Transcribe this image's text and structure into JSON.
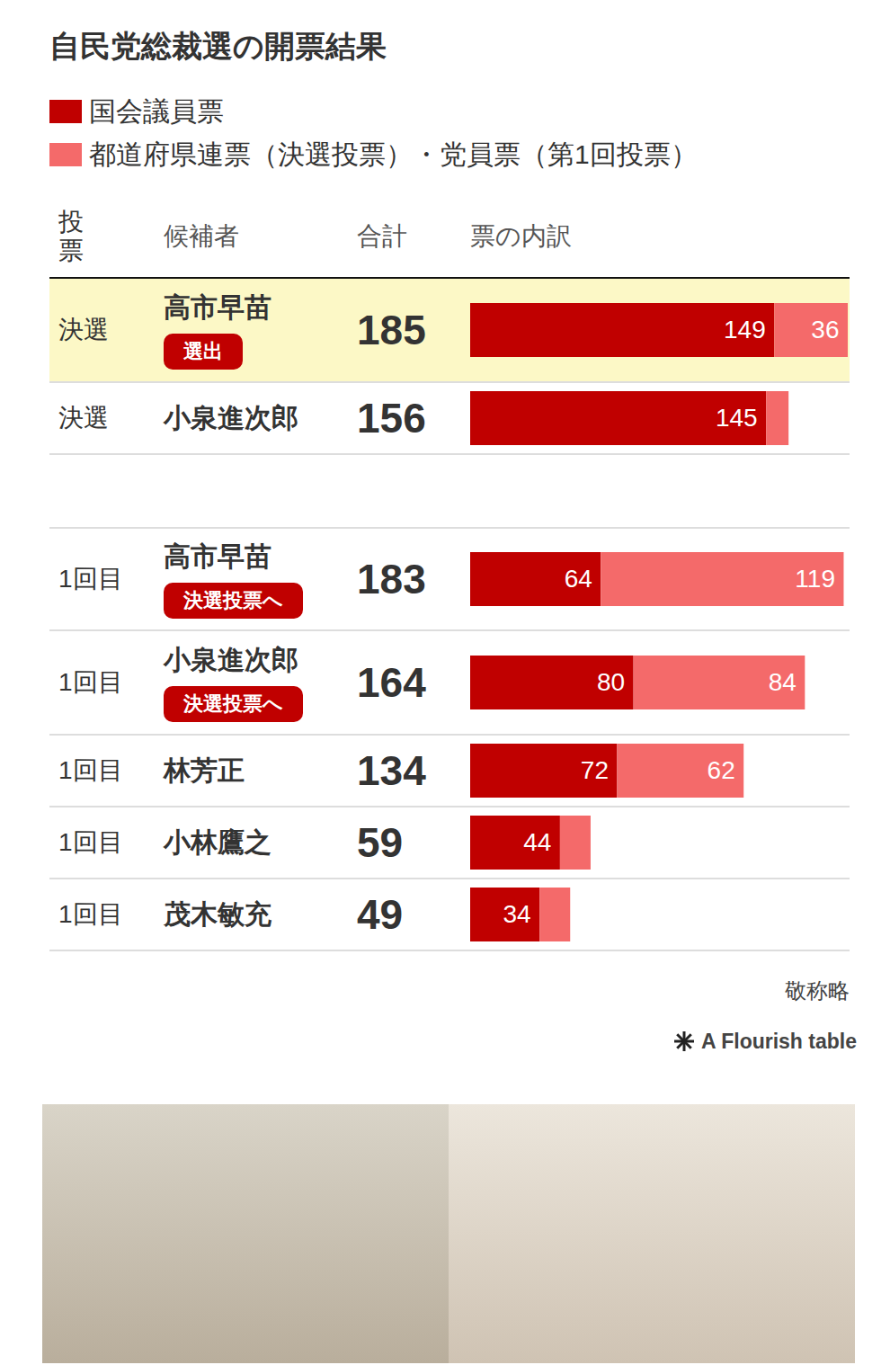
{
  "chart_data": {
    "type": "bar",
    "title": "自民党総裁選の開票結果",
    "orientation": "horizontal",
    "stacked": true,
    "data_labels": true,
    "tick_labels": false,
    "legend": "top-left",
    "column_headers": [
      "投票",
      "候補者",
      "合計",
      "票の内訳"
    ],
    "categories": [
      "高市早苗",
      "小泉進次郎",
      "高市早苗",
      "小泉進次郎",
      "林芳正",
      "小林鷹之",
      "茂木敏充"
    ],
    "rounds": [
      "決選",
      "決選",
      "1回目",
      "1回目",
      "1回目",
      "1回目",
      "1回目"
    ],
    "badges": [
      "選出",
      null,
      "決選投票へ",
      "決選投票へ",
      null,
      null,
      null
    ],
    "totals": [
      185,
      156,
      183,
      164,
      134,
      59,
      49
    ],
    "series": [
      {
        "name": "国会議員票",
        "color": "#c00000",
        "values": [
          149,
          145,
          64,
          80,
          72,
          44,
          34
        ],
        "value_labels": [
          "149",
          "145",
          "64",
          "80",
          "72",
          "44",
          "34"
        ]
      },
      {
        "name": "都道府県連票（決選投票）・党員票（第1回投票）",
        "color": "#f46a6a",
        "values": [
          36,
          11,
          119,
          84,
          62,
          15,
          15
        ],
        "value_labels": [
          "36",
          null,
          "119",
          "84",
          "62",
          null,
          null
        ]
      }
    ],
    "xlim": [
      0,
      185
    ],
    "note": "敬称略",
    "source": "A Flourish table"
  }
}
